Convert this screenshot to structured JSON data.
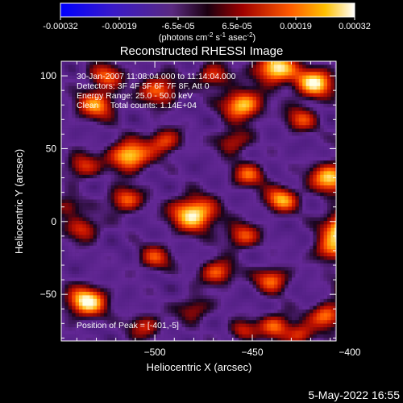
{
  "chart_data": {
    "type": "heatmap",
    "title": "Reconstructed RHESSI Image",
    "xlabel": "Heliocentric X (arcsec)",
    "ylabel": "Heliocentric Y (arcsec)",
    "xlim": [
      -548,
      -407
    ],
    "ylim": [
      -82,
      110
    ],
    "xticks": [
      -500,
      -450,
      -400
    ],
    "yticks": [
      -50,
      0,
      50,
      100
    ],
    "colorbar": {
      "ticks": [
        "-0.00032",
        "-0.00019",
        "-6.5e-05",
        "6.5e-05",
        "0.00019",
        "0.00032"
      ],
      "min": -0.00032,
      "max": 0.00032,
      "unit_text": "(photons cm",
      "unit_sup1": "-2",
      "unit_mid": " s",
      "unit_sup2": "-1",
      "unit_end": " asec",
      "unit_sup3": "-2",
      "unit_close": ")"
    },
    "annotations": [
      "30-Jan-2007 11:08:04.000 to 11:14:04.000",
      "Detectors: 3F 4F 5F 6F 7F 8F, Att 0",
      "Energy Range: 25.0 - 50.0 keV",
      "Clean     Total counts: 1.14E+04"
    ],
    "peak_label": "Position of Peak = [-401,-5]",
    "peak": [
      -401,
      -5
    ],
    "blobs": [
      {
        "x": -401,
        "y": -5,
        "v": 1.0,
        "s": 8
      },
      {
        "x": -438,
        "y": 105,
        "v": 0.85,
        "s": 7
      },
      {
        "x": -418,
        "y": 95,
        "v": 0.8,
        "s": 7
      },
      {
        "x": -455,
        "y": 80,
        "v": 0.75,
        "s": 7
      },
      {
        "x": -498,
        "y": 90,
        "v": 0.55,
        "s": 7
      },
      {
        "x": -530,
        "y": 80,
        "v": 0.6,
        "s": 7
      },
      {
        "x": -513,
        "y": 45,
        "v": 0.8,
        "s": 7
      },
      {
        "x": -537,
        "y": 38,
        "v": 0.45,
        "s": 6
      },
      {
        "x": -495,
        "y": 55,
        "v": 0.5,
        "s": 6
      },
      {
        "x": -452,
        "y": 32,
        "v": 0.5,
        "s": 6
      },
      {
        "x": -410,
        "y": 30,
        "v": 0.75,
        "s": 7
      },
      {
        "x": -395,
        "y": 55,
        "v": 0.55,
        "s": 6
      },
      {
        "x": -425,
        "y": 70,
        "v": 0.45,
        "s": 6
      },
      {
        "x": -515,
        "y": 15,
        "v": 0.55,
        "s": 6
      },
      {
        "x": -480,
        "y": 5,
        "v": 0.85,
        "s": 8
      },
      {
        "x": -455,
        "y": -10,
        "v": 0.5,
        "s": 6
      },
      {
        "x": -435,
        "y": 15,
        "v": 0.65,
        "s": 6
      },
      {
        "x": -537,
        "y": -5,
        "v": 0.45,
        "s": 6
      },
      {
        "x": -500,
        "y": -25,
        "v": 0.45,
        "s": 6
      },
      {
        "x": -468,
        "y": -35,
        "v": 0.55,
        "s": 6
      },
      {
        "x": -440,
        "y": -40,
        "v": 0.55,
        "s": 6
      },
      {
        "x": -410,
        "y": -20,
        "v": 0.5,
        "s": 6
      },
      {
        "x": -535,
        "y": -55,
        "v": 0.85,
        "s": 7
      },
      {
        "x": -395,
        "y": -45,
        "v": 0.8,
        "s": 7
      },
      {
        "x": -375,
        "y": 10,
        "v": 0.45,
        "s": 6
      },
      {
        "x": -412,
        "y": -65,
        "v": 0.6,
        "s": 6
      },
      {
        "x": -438,
        "y": -72,
        "v": 0.55,
        "s": 6
      },
      {
        "x": -425,
        "y": -78,
        "v": 0.45,
        "s": 5
      },
      {
        "x": -480,
        "y": -60,
        "v": 0.35,
        "s": 6
      },
      {
        "x": -505,
        "y": -72,
        "v": 0.4,
        "s": 6
      },
      {
        "x": -525,
        "y": 100,
        "v": 0.5,
        "s": 6
      },
      {
        "x": -470,
        "y": 100,
        "v": 0.45,
        "s": 6
      },
      {
        "x": -460,
        "y": 55,
        "v": 0.4,
        "s": 6
      },
      {
        "x": -545,
        "y": 10,
        "v": 0.35,
        "s": 5
      },
      {
        "x": -455,
        "y": -75,
        "v": 0.4,
        "s": 5
      }
    ]
  },
  "footer": {
    "timestamp": "5-May-2022 16:55"
  }
}
